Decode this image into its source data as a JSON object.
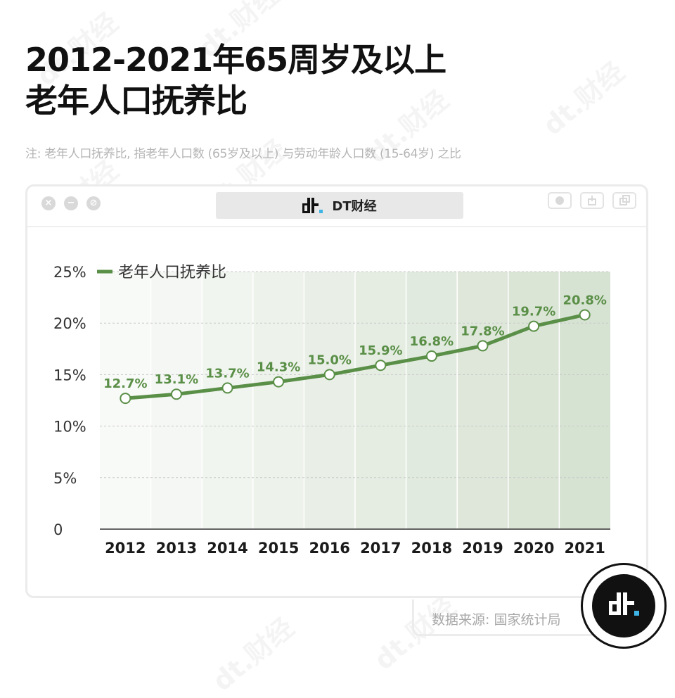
{
  "title_line1": "2012-2021年65周岁及以上",
  "title_line2": "老年人口抚养比",
  "note": "注: 老年人口抚养比, 指老年人口数 (65岁及以上) 与劳动年龄人口数 (15-64岁) 之比",
  "window": {
    "tab_label": "DT财经",
    "buttons": [
      "close-icon",
      "minimize-icon",
      "block-icon"
    ],
    "tools": [
      "record-icon",
      "share-icon",
      "copy-icon"
    ]
  },
  "source": "数据来源: 国家统计局",
  "brand_watermark": "财经",
  "colors": {
    "line": "#5a8f47",
    "label": "#5a8f47",
    "grid": "#c9c9c9",
    "axis": "#333333"
  },
  "chart_data": {
    "type": "line",
    "categories": [
      "2012",
      "2013",
      "2014",
      "2015",
      "2016",
      "2017",
      "2018",
      "2019",
      "2020",
      "2021"
    ],
    "series": [
      {
        "name": "老年人口抚养比",
        "values": [
          12.7,
          13.1,
          13.7,
          14.3,
          15.0,
          15.9,
          16.8,
          17.8,
          19.7,
          20.8
        ],
        "labels": [
          "12.7%",
          "13.1%",
          "13.7%",
          "14.3%",
          "15.0%",
          "15.9%",
          "16.8%",
          "17.8%",
          "19.7%",
          "20.8%"
        ]
      }
    ],
    "yticks": [
      "0",
      "5%",
      "10%",
      "15%",
      "20%",
      "25%"
    ],
    "ytick_values": [
      0,
      5,
      10,
      15,
      20,
      25
    ],
    "ylim": [
      0,
      25
    ],
    "grid": true,
    "legend": "top-left",
    "background": "green gradient bands increasing toward 2021"
  }
}
